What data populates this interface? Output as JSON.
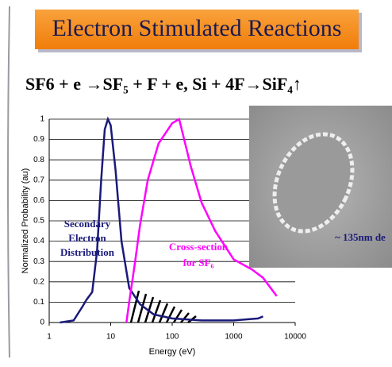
{
  "chart_data": {
    "type": "line",
    "title": "Electron Stimulated Reactions",
    "subtitle": "SF6 + e →SF₅ + F + e, Si + 4F→SiF₄↑",
    "x_label": "Energy (eV)",
    "y_label": "Normalized Probability (au)",
    "log_x": true,
    "grid": true,
    "xlim": [
      1,
      10000
    ],
    "xticks": [
      1,
      10,
      100,
      1000,
      10000
    ],
    "ylim": [
      0,
      1
    ],
    "yticks": [
      0,
      0.1,
      0.2,
      0.3,
      0.4,
      0.5,
      0.6,
      0.7,
      0.8,
      0.9,
      1
    ],
    "series": [
      {
        "color": "#1a1a7a",
        "x": [
          1.5,
          2.5,
          3.5,
          4,
          5,
          6,
          7,
          8,
          9,
          10,
          12,
          15,
          20,
          30,
          50,
          100,
          300,
          1000,
          2500,
          3000
        ],
        "values": [
          0,
          0.01,
          0.08,
          0.11,
          0.15,
          0.35,
          0.7,
          0.95,
          1,
          0.97,
          0.75,
          0.4,
          0.17,
          0.09,
          0.04,
          0.02,
          0.01,
          0.01,
          0.02,
          0.03
        ]
      },
      {
        "color": "#ff00ff",
        "x": [
          18,
          20,
          25,
          30,
          40,
          60,
          100,
          130,
          200,
          300,
          500,
          1000,
          2000,
          3000,
          5000
        ],
        "values": [
          0,
          0.1,
          0.3,
          0.48,
          0.7,
          0.88,
          0.98,
          1,
          0.77,
          0.59,
          0.45,
          0.31,
          0.26,
          0.22,
          0.13
        ]
      }
    ],
    "annotations": [
      [
        "Secondary",
        "Electron",
        "Distribution"
      ],
      [
        "Cross-section",
        "for SF₆"
      ],
      [
        "~ 135nm de"
      ]
    ]
  }
}
